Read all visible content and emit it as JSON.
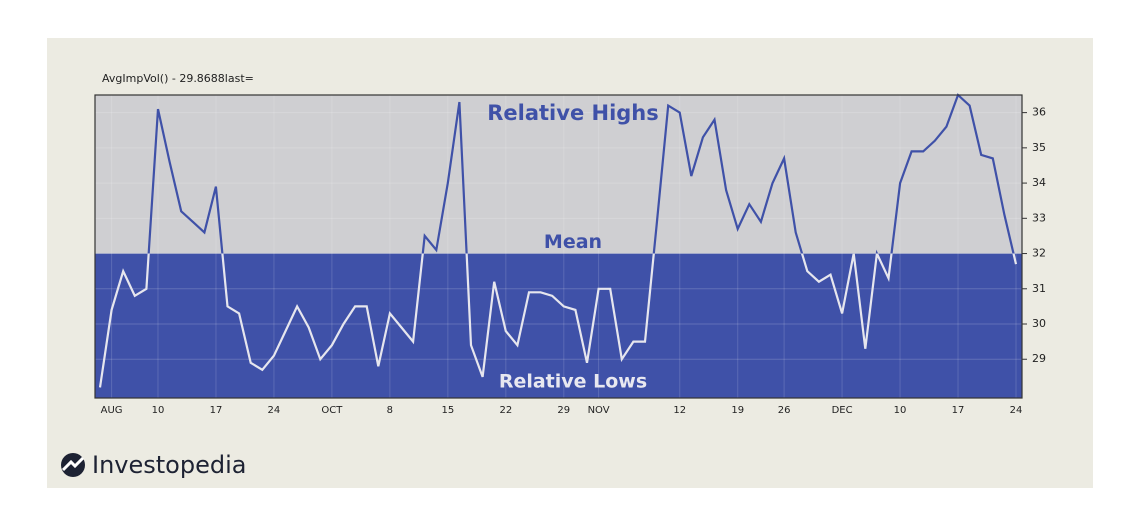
{
  "chart_data": {
    "type": "line",
    "title": "AvgImpVol() - 29.8688last=",
    "annotations": {
      "high": "Relative Highs",
      "mean": "Mean",
      "low": "Relative Lows"
    },
    "mean": 32,
    "categories": [
      null,
      "AUG",
      null,
      null,
      null,
      "10",
      null,
      null,
      null,
      null,
      "17",
      null,
      null,
      null,
      null,
      "24",
      null,
      null,
      null,
      null,
      "OCT",
      null,
      null,
      null,
      null,
      "8",
      null,
      null,
      null,
      null,
      "15",
      null,
      null,
      null,
      null,
      "22",
      null,
      null,
      null,
      null,
      "29",
      null,
      null,
      "NOV",
      null,
      null,
      null,
      null,
      null,
      null,
      "12",
      null,
      null,
      null,
      null,
      "19",
      null,
      null,
      null,
      "26",
      null,
      null,
      null,
      null,
      "DEC",
      null,
      null,
      null,
      null,
      "10",
      null,
      null,
      null,
      null,
      "17",
      null,
      null,
      null,
      null,
      "24"
    ],
    "series": [
      {
        "name": "AvgImpVol",
        "color": "#3f51a8",
        "values": [
          28.2,
          30.4,
          31.5,
          30.8,
          31.0,
          36.1,
          34.6,
          33.2,
          32.9,
          32.6,
          33.9,
          30.5,
          30.3,
          28.9,
          28.7,
          29.1,
          29.8,
          30.5,
          29.9,
          29.0,
          29.4,
          30.0,
          30.5,
          30.5,
          28.8,
          30.3,
          29.9,
          29.5,
          32.5,
          32.1,
          34.0,
          36.3,
          29.4,
          28.5,
          31.2,
          29.8,
          29.4,
          30.9,
          30.9,
          30.8,
          30.5,
          30.4,
          28.9,
          31.0,
          31.0,
          29.0,
          29.5,
          29.5,
          32.8,
          36.2,
          36.0,
          34.2,
          35.3,
          35.8,
          33.8,
          32.7,
          33.4,
          32.9,
          34.0,
          34.7,
          32.6,
          31.5,
          31.2,
          31.4,
          30.3,
          32.0,
          29.3,
          32.0,
          31.3,
          34.0,
          34.9,
          34.9,
          35.2,
          35.6,
          36.5,
          36.2,
          34.8,
          34.7,
          33.1,
          31.7
        ]
      }
    ],
    "ylim": [
      27.9,
      36.5
    ],
    "yticks": [
      29,
      30,
      31,
      32,
      33,
      34,
      35,
      36
    ],
    "high_color": "#cfcfd2",
    "low_color": "#3f51a8",
    "low_line_color": "#e6e6ee",
    "grid": true
  },
  "logo": "Investopedia"
}
